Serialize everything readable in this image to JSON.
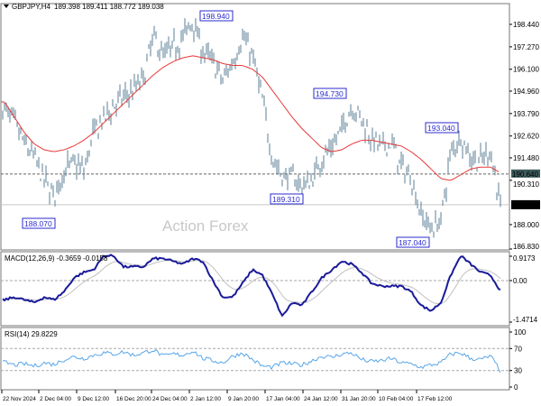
{
  "header": {
    "symbol": "GBPJPY,H4",
    "ohlc": "189.398 189.411 188.772 189.038"
  },
  "watermark": "Action Forex",
  "colors": {
    "bars": "#5b7f96",
    "ma": "#e8393a",
    "macd": "#1a1a9a",
    "signal": "#c0c0c0",
    "rsi": "#58a6e8",
    "label": "#2b2bd0"
  },
  "chart_data": [
    {
      "type": "line",
      "title": "GBPJPY,H4",
      "ylim": [
        186.83,
        198.44
      ],
      "yticks": [
        "198.440",
        "197.270",
        "196.100",
        "194.960",
        "193.790",
        "192.620",
        "191.480",
        "190.310",
        "188.000",
        "186.830"
      ],
      "xticks": [
        "22 Nov 2024",
        "2 Dec 04:00",
        "9 Dec 12:00",
        "16 Dec 20:00",
        "24 Dec 04:00",
        "2 Jan 12:00",
        "9 Jan 20:00",
        "17 Jan 04:00",
        "24 Jan 12:00",
        "31 Jan 20:00",
        "10 Feb 04:00",
        "17 Feb 12:00"
      ],
      "close": [
        194.0,
        193.3,
        192.2,
        191.5,
        190.3,
        189.5,
        190.8,
        191.2,
        190.8,
        192.8,
        193.5,
        194.2,
        194.6,
        195.0,
        195.6,
        197.8,
        196.8,
        197.2,
        197.8,
        198.6,
        197.0,
        196.5,
        195.5,
        196.5,
        197.8,
        196.8,
        194.5,
        191.5,
        190.5,
        190.5,
        190.0,
        190.3,
        191.5,
        192.0,
        193.0,
        194.2,
        193.5,
        192.5,
        192.0,
        192.3,
        191.0,
        190.5,
        188.5,
        187.8,
        188.2,
        191.8,
        192.6,
        191.5,
        191.3,
        191.9,
        189.0
      ],
      "ma": [
        194.4,
        193.6,
        192.8,
        192.2,
        191.9,
        191.8,
        191.9,
        192.1,
        192.4,
        192.8,
        193.3,
        193.8,
        194.3,
        194.8,
        195.3,
        195.8,
        196.2,
        196.5,
        196.7,
        196.8,
        196.7,
        196.6,
        196.4,
        196.3,
        196.3,
        196.1,
        195.7,
        195.0,
        194.3,
        193.6,
        193.0,
        192.5,
        192.0,
        191.8,
        191.9,
        192.2,
        192.4,
        192.4,
        192.3,
        192.2,
        192.1,
        191.8,
        191.4,
        190.9,
        190.4,
        190.3,
        190.6,
        190.9,
        191.0,
        191.0,
        190.7
      ],
      "annotations": [
        "198.940",
        "194.730",
        "193.040",
        "189.310",
        "188.070",
        "187.040"
      ],
      "current_price": "189.038",
      "level": "190.640"
    },
    {
      "type": "line",
      "title": "MACD(12,26,9) -0.3659 -0.0158",
      "ylim": [
        -1.4714,
        0.9173
      ],
      "yticks": [
        "0.9173",
        "0.00",
        "-1.4714"
      ],
      "macd": [
        -0.7,
        -0.6,
        -0.7,
        -0.8,
        -0.6,
        -0.7,
        -0.4,
        0.1,
        0.3,
        0.4,
        0.9,
        0.9,
        0.5,
        0.5,
        0.5,
        0.8,
        0.8,
        0.7,
        0.6,
        0.8,
        0.7,
        0.0,
        -0.6,
        -0.6,
        -0.1,
        0.4,
        0.2,
        -0.5,
        -1.3,
        -0.8,
        -0.9,
        -0.4,
        0.1,
        0.4,
        0.7,
        0.6,
        0.3,
        -0.1,
        -0.2,
        -0.2,
        -0.2,
        -0.4,
        -0.9,
        -1.1,
        -0.8,
        0.2,
        0.9,
        0.6,
        0.3,
        0.2,
        -0.37
      ]
    },
    {
      "type": "line",
      "title": "RSI(14) 29.8229",
      "ylim": [
        0,
        100
      ],
      "yticks": [
        "100",
        "70",
        "30",
        "0"
      ],
      "rsi": [
        45,
        40,
        42,
        38,
        44,
        41,
        50,
        55,
        52,
        58,
        62,
        60,
        64,
        58,
        62,
        68,
        56,
        60,
        58,
        66,
        52,
        48,
        44,
        56,
        62,
        50,
        38,
        36,
        44,
        42,
        40,
        48,
        56,
        54,
        60,
        62,
        50,
        46,
        48,
        52,
        44,
        42,
        36,
        40,
        44,
        60,
        62,
        52,
        50,
        56,
        30
      ]
    }
  ]
}
